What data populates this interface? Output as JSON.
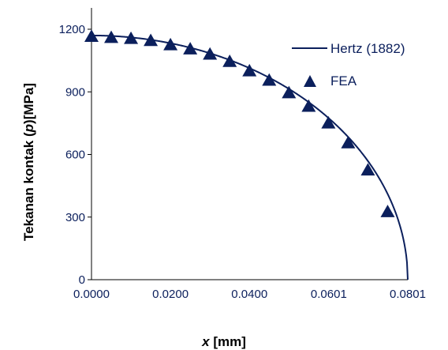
{
  "chart_data": {
    "type": "line",
    "title": "",
    "xlabel_var": "x",
    "xlabel_unit": " [mm]",
    "ylabel_prefix": "Tekanan kontak (",
    "ylabel_var": "p",
    "ylabel_suffix": ")[MPa]",
    "xlim": [
      0,
      0.0801
    ],
    "ylim": [
      0,
      1200
    ],
    "xticks": [
      0,
      0.02,
      0.04,
      0.0601,
      0.0801
    ],
    "xtick_labels": [
      "0.0000",
      "0.0200",
      "0.0400",
      "0.0601",
      "0.0801"
    ],
    "yticks": [
      0,
      300,
      600,
      900,
      1200
    ],
    "ytick_labels": [
      "0",
      "300",
      "600",
      "900",
      "1200"
    ],
    "grid": false,
    "legend_position": "top-right",
    "series": [
      {
        "name": "Hertz (1882)",
        "kind": "line",
        "color": "#0b1f5c",
        "p0": 1170,
        "a": 0.0801
      },
      {
        "name": "FEA",
        "kind": "scatter",
        "marker": "triangle",
        "color": "#0b1f5c",
        "x": [
          0.0,
          0.005,
          0.01,
          0.015,
          0.02,
          0.025,
          0.03,
          0.035,
          0.04,
          0.045,
          0.05,
          0.055,
          0.06,
          0.065,
          0.07,
          0.075
        ],
        "y": [
          1165,
          1160,
          1155,
          1145,
          1125,
          1105,
          1080,
          1045,
          1000,
          955,
          895,
          830,
          750,
          655,
          525,
          325
        ]
      }
    ]
  }
}
